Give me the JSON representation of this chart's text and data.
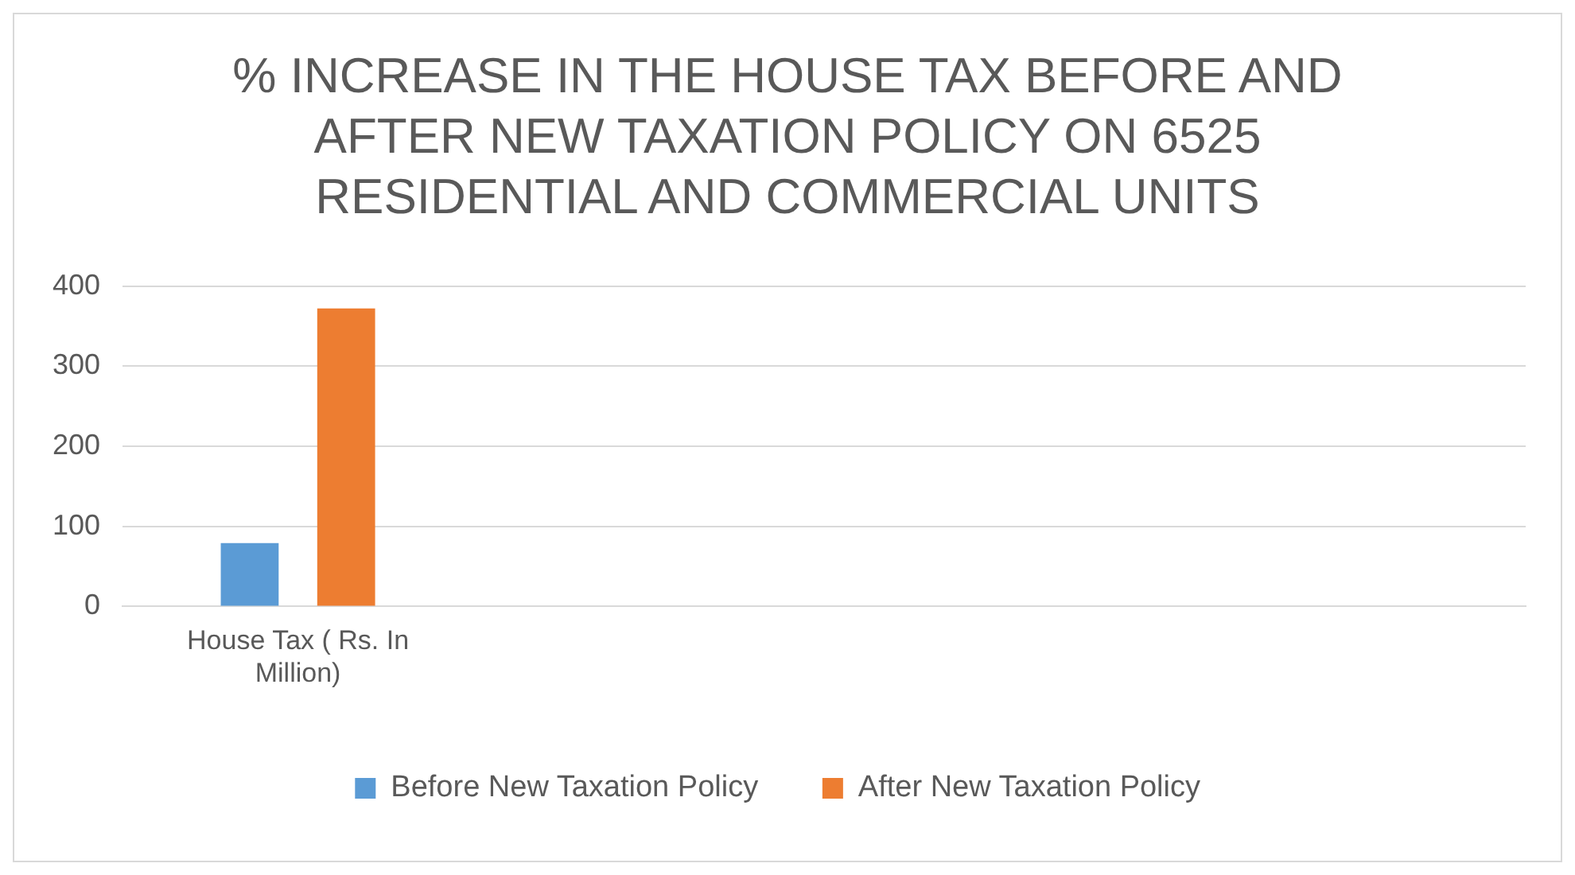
{
  "chart_data": {
    "type": "bar",
    "title": "% INCREASE IN THE HOUSE TAX BEFORE AND AFTER NEW TAXATION POLICY ON 6525 RESIDENTIAL AND COMMERCIAL UNITS",
    "categories": [
      "House Tax ( Rs. In Million)",
      null,
      null,
      null
    ],
    "series": [
      {
        "name": "Before New Taxation Policy",
        "color": "#5b9bd5",
        "values": [
          79,
          null,
          null,
          null
        ]
      },
      {
        "name": "After New Taxation Policy",
        "color": "#ed7d31",
        "values": [
          372,
          null,
          null,
          null
        ]
      }
    ],
    "ylim": [
      0,
      400
    ],
    "yticks": [
      0,
      100,
      200,
      300,
      400
    ],
    "grid": "y",
    "legend": "bottom"
  }
}
